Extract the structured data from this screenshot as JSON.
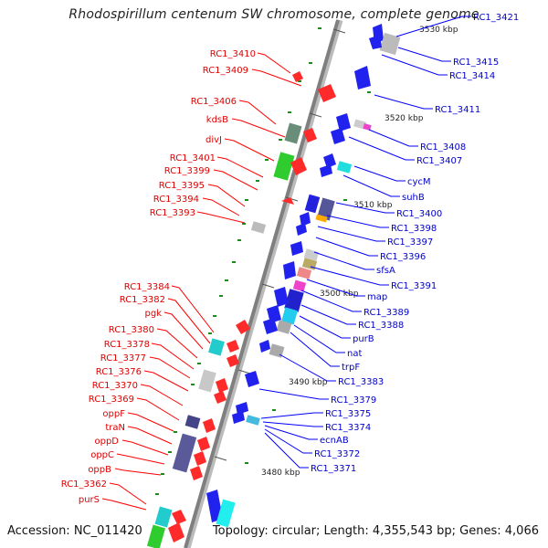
{
  "title": "Rhodospirillum centenum SW chromosome, complete genome",
  "footer": {
    "accession": "Accession: NC_011420",
    "summary": "Topology: circular; Length: 4,355,543 bp; Genes: 4,066"
  },
  "ticks": [
    "3530 kbp",
    "3520 kbp",
    "3510 kbp",
    "3500 kbp",
    "3490 kbp",
    "3480 kbp"
  ],
  "left_labels": [
    "RC1_3410",
    "RC1_3409",
    "RC1_3406",
    "kdsB",
    "divJ",
    "RC1_3401",
    "RC1_3399",
    "RC1_3395",
    "RC1_3394",
    "RC1_3393",
    "RC1_3384",
    "RC1_3382",
    "pgk",
    "RC1_3380",
    "RC1_3378",
    "RC1_3377",
    "RC1_3376",
    "RC1_3370",
    "RC1_3369",
    "oppF",
    "traN",
    "oppD",
    "oppC",
    "oppB",
    "RC1_3362",
    "purS"
  ],
  "right_labels": [
    "RC1_3421",
    "RC1_3415",
    "RC1_3414",
    "RC1_3411",
    "RC1_3408",
    "RC1_3407",
    "cycM",
    "suhB",
    "RC1_3400",
    "RC1_3398",
    "RC1_3397",
    "RC1_3396",
    "sfsA",
    "RC1_3391",
    "map",
    "RC1_3389",
    "RC1_3388",
    "purB",
    "nat",
    "trpF",
    "RC1_3383",
    "RC1_3379",
    "RC1_3375",
    "RC1_3374",
    "ecnAB",
    "RC1_3372",
    "RC1_3371"
  ],
  "colors": {
    "left_strand": "#ff0000",
    "right_strand": "#0000ff",
    "backbone": "#888888",
    "tick_mark": "#118811"
  }
}
